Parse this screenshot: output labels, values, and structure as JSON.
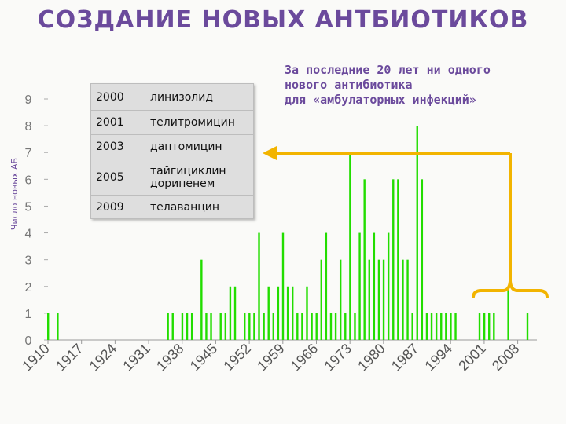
{
  "title": "СОЗДАНИЕ НОВЫХ АНТБИОТИКОВ",
  "note": [
    "За последние 20 лет ни одного",
    "нового антибиотика",
    "для «амбулаторных инфекций»"
  ],
  "table": [
    {
      "year": "2000",
      "drug": "линизолид"
    },
    {
      "year": "2001",
      "drug": "телитромицин"
    },
    {
      "year": "2003",
      "drug": "даптомицин"
    },
    {
      "year": "2005",
      "drug": "тайгициклин дорипенем"
    },
    {
      "year": "2009",
      "drug": "телаванцин"
    }
  ],
  "colors": {
    "bars": "#22dd00",
    "accent": "#f2b400",
    "text": "#6b4a9c"
  },
  "chart_data": {
    "type": "bar",
    "title": "",
    "xlabel": "",
    "ylabel": "Число новых АБ",
    "ylim": [
      0,
      9
    ],
    "xlim": [
      1910,
      2012
    ],
    "yticks": [
      "0",
      "1",
      "2",
      "3",
      "4",
      "5",
      "6",
      "7",
      "8",
      "9"
    ],
    "xticks": [
      "1910",
      "1917",
      "1924",
      "1931",
      "1938",
      "1945",
      "1952",
      "1959",
      "1966",
      "1973",
      "1980",
      "1987",
      "1994",
      "2001",
      "2008"
    ],
    "x": [
      1910,
      1912,
      1935,
      1936,
      1938,
      1939,
      1940,
      1942,
      1943,
      1944,
      1946,
      1947,
      1948,
      1949,
      1951,
      1952,
      1953,
      1954,
      1955,
      1956,
      1957,
      1958,
      1959,
      1960,
      1961,
      1962,
      1963,
      1964,
      1965,
      1966,
      1967,
      1968,
      1969,
      1970,
      1971,
      1972,
      1973,
      1974,
      1975,
      1976,
      1977,
      1978,
      1979,
      1980,
      1981,
      1982,
      1983,
      1984,
      1985,
      1986,
      1987,
      1988,
      1989,
      1990,
      1991,
      1992,
      1993,
      1994,
      1995,
      2000,
      2001,
      2002,
      2003,
      2006,
      2010
    ],
    "values": [
      1,
      1,
      1,
      1,
      1,
      1,
      1,
      3,
      1,
      1,
      1,
      1,
      2,
      2,
      1,
      1,
      1,
      4,
      1,
      2,
      1,
      2,
      4,
      2,
      2,
      1,
      1,
      2,
      1,
      1,
      3,
      4,
      1,
      1,
      3,
      1,
      7,
      1,
      4,
      6,
      3,
      4,
      3,
      3,
      4,
      6,
      6,
      3,
      3,
      1,
      8,
      6,
      1,
      1,
      1,
      1,
      1,
      1,
      1,
      1,
      1,
      1,
      1,
      2,
      1
    ]
  }
}
